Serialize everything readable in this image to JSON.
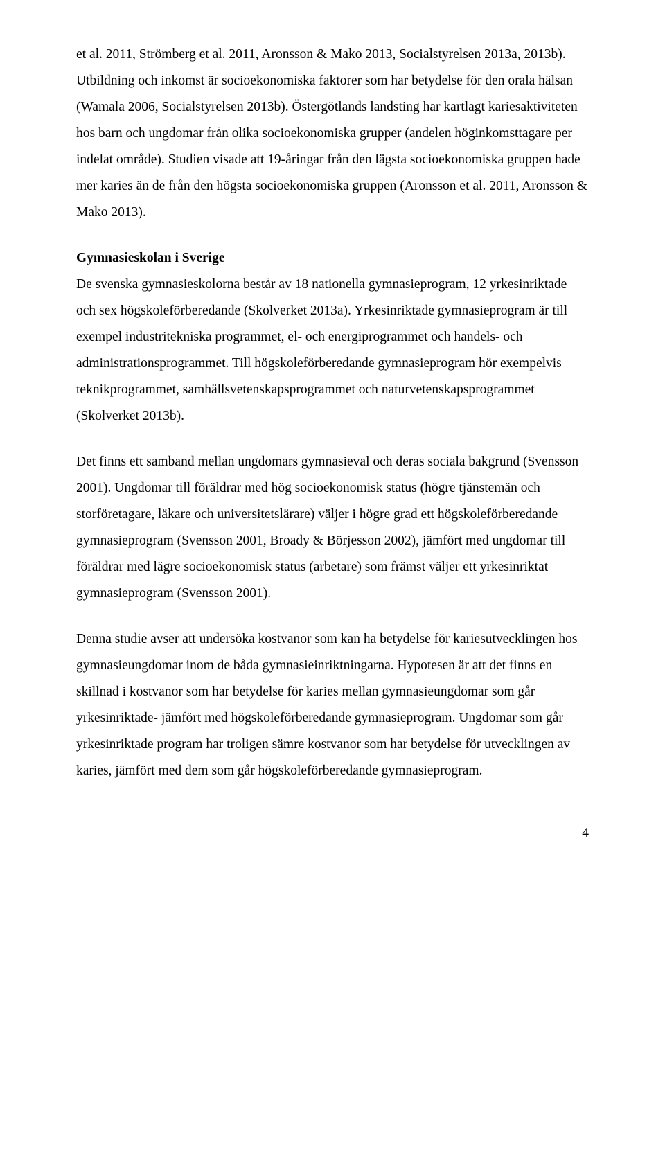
{
  "para1": "et al. 2011, Strömberg et al. 2011, Aronsson & Mako 2013, Socialstyrelsen 2013a, 2013b). Utbildning och inkomst är socioekonomiska faktorer som har betydelse för den orala hälsan (Wamala 2006, Socialstyrelsen 2013b). Östergötlands landsting har kartlagt kariesaktiviteten hos barn och ungdomar från olika socioekonomiska grupper (andelen höginkomsttagare per indelat område). Studien visade att 19-åringar från den lägsta socioekonomiska gruppen hade mer karies än de från den högsta socioekonomiska gruppen (Aronsson et al. 2011, Aronsson & Mako 2013).",
  "heading": "Gymnasieskolan i Sverige",
  "para2": "De svenska gymnasieskolorna består av 18 nationella gymnasieprogram, 12 yrkesinriktade och sex högskoleförberedande (Skolverket 2013a). Yrkesinriktade gymnasieprogram är till exempel industritekniska programmet, el- och energiprogrammet och handels- och administrationsprogrammet. Till högskoleförberedande gymnasieprogram hör exempelvis teknikprogrammet, samhällsvetenskapsprogrammet och naturvetenskapsprogrammet (Skolverket 2013b).",
  "para3": "Det finns ett samband mellan ungdomars gymnasieval och deras sociala bakgrund (Svensson 2001). Ungdomar till föräldrar med hög socioekonomisk status (högre tjänstemän och storföretagare, läkare och universitetslärare) väljer i högre grad ett högskoleförberedande gymnasieprogram (Svensson 2001, Broady & Börjesson 2002), jämfört med ungdomar till föräldrar med lägre socioekonomisk status (arbetare) som främst väljer ett yrkesinriktat gymnasieprogram (Svensson 2001).",
  "para4": "Denna studie avser att undersöka kostvanor som kan ha betydelse för kariesutvecklingen hos gymnasieungdomar inom de båda gymnasieinriktningarna. Hypotesen är att det finns en skillnad i kostvanor som har betydelse för karies mellan gymnasieungdomar som går yrkesinriktade- jämfört med högskoleförberedande gymnasieprogram. Ungdomar som går yrkesinriktade program har troligen sämre kostvanor som har betydelse för utvecklingen av karies, jämfört med dem som går högskoleförberedande gymnasieprogram.",
  "pageNumber": "4"
}
